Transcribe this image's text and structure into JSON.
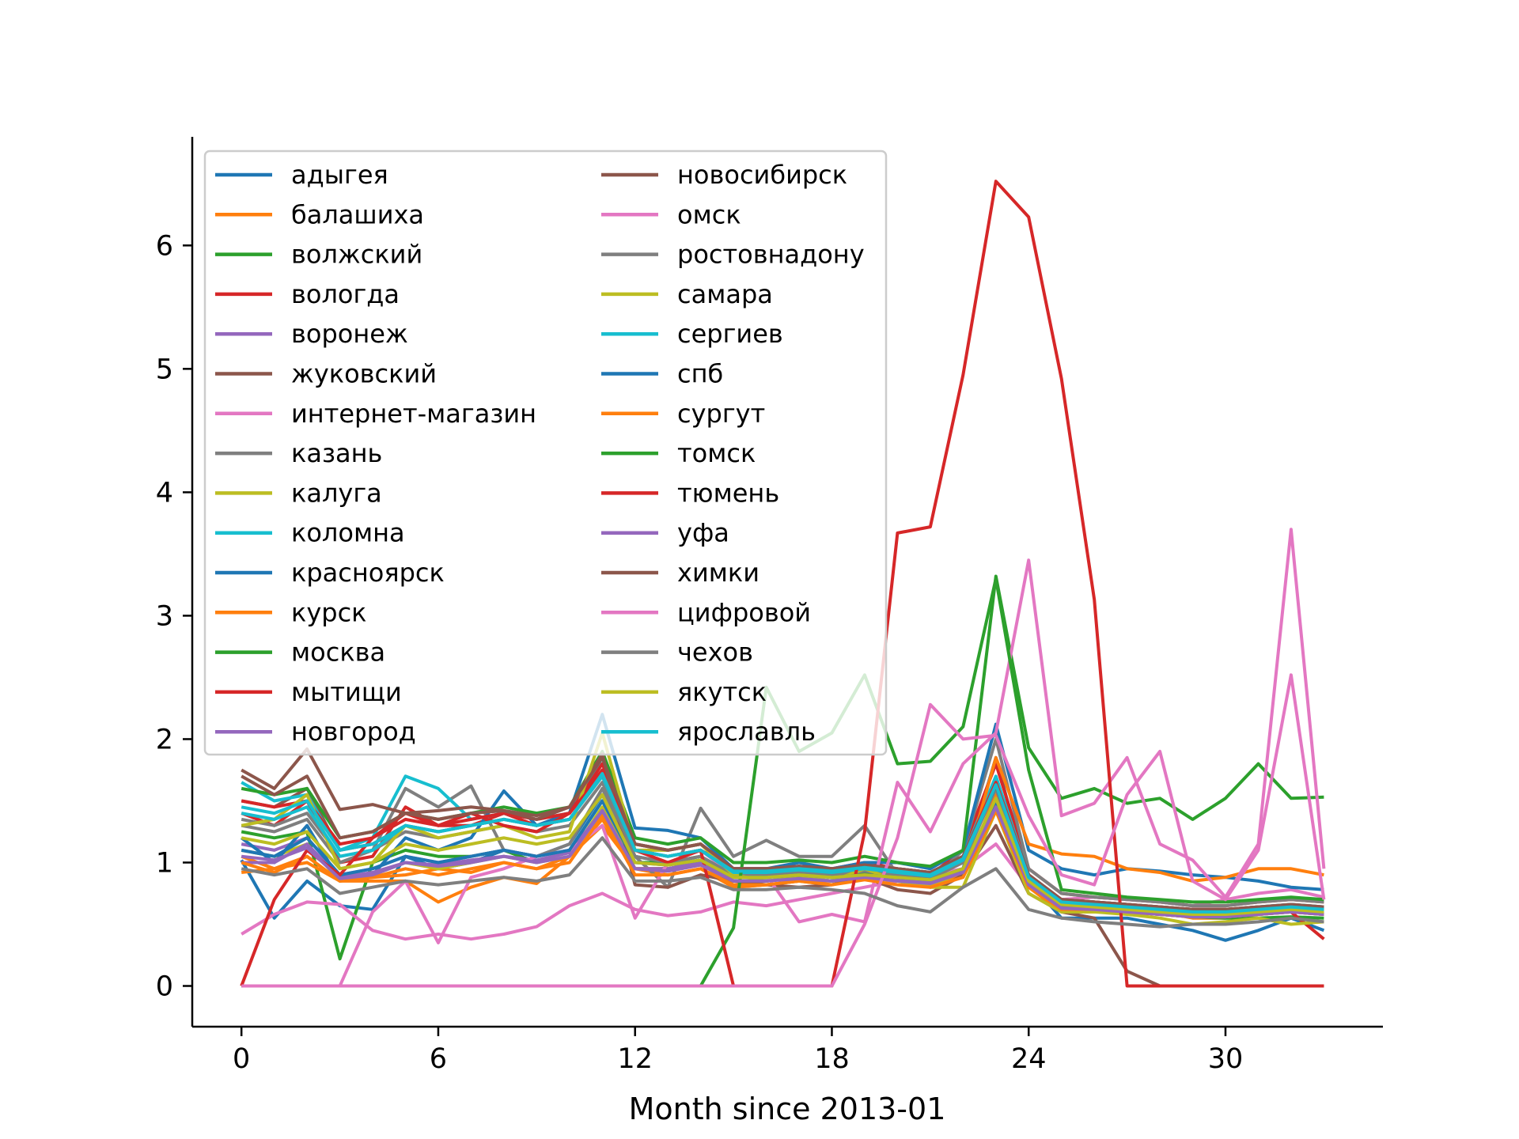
{
  "chart_data": {
    "type": "line",
    "xlabel": "Month since 2013-01",
    "ylabel": "",
    "xlim": [
      -1.5,
      34.8
    ],
    "ylim": [
      -0.33,
      6.88
    ],
    "xticks": [
      0,
      6,
      12,
      18,
      24,
      30
    ],
    "yticks": [
      0,
      1,
      2,
      3,
      4,
      5,
      6
    ],
    "x": [
      0,
      1,
      2,
      3,
      4,
      5,
      6,
      7,
      8,
      9,
      10,
      11,
      12,
      13,
      14,
      15,
      16,
      17,
      18,
      19,
      20,
      21,
      22,
      23,
      24,
      25,
      26,
      27,
      28,
      29,
      30,
      31,
      32,
      33
    ],
    "legend": "upper-left, 2 columns",
    "series": [
      {
        "name": "адыгея",
        "color": "#1f77b4",
        "values": [
          1.02,
          0.55,
          0.85,
          0.65,
          0.62,
          1.05,
          0.95,
          1.0,
          1.1,
          1.05,
          1.15,
          1.55,
          1.05,
          1.0,
          1.05,
          0.9,
          0.88,
          0.92,
          0.88,
          0.9,
          0.85,
          0.82,
          0.95,
          1.85,
          0.85,
          0.55,
          0.55,
          0.55,
          0.5,
          0.45,
          0.37,
          0.45,
          0.55,
          0.45
        ]
      },
      {
        "name": "балашиха",
        "color": "#ff7f0e",
        "values": [
          0.92,
          0.95,
          1.05,
          0.85,
          0.88,
          0.9,
          0.95,
          0.92,
          1.0,
          0.95,
          1.05,
          1.35,
          0.95,
          0.9,
          0.95,
          0.8,
          0.82,
          0.85,
          0.82,
          0.88,
          0.85,
          0.8,
          0.9,
          1.55,
          0.8,
          0.6,
          0.6,
          0.62,
          0.6,
          0.55,
          0.55,
          0.58,
          0.6,
          0.58
        ]
      },
      {
        "name": "волжский",
        "color": "#2ca02c",
        "values": [
          1.25,
          1.2,
          1.25,
          0.22,
          1.0,
          1.1,
          1.05,
          1.05,
          1.1,
          1.0,
          1.1,
          1.5,
          1.0,
          1.0,
          1.05,
          0.9,
          0.9,
          0.92,
          0.9,
          0.92,
          0.9,
          0.88,
          0.95,
          1.5,
          0.85,
          0.65,
          0.62,
          0.6,
          0.58,
          0.56,
          0.55,
          0.55,
          0.56,
          0.55
        ]
      },
      {
        "name": "вологда",
        "color": "#d62728",
        "values": [
          1.4,
          1.3,
          1.5,
          1.0,
          1.05,
          1.45,
          1.3,
          1.3,
          1.4,
          1.3,
          1.4,
          1.75,
          1.1,
          1.05,
          1.1,
          0.95,
          0.9,
          0.92,
          0.95,
          1.0,
          0.95,
          0.9,
          1.1,
          1.8,
          0.95,
          0.75,
          0.72,
          0.7,
          0.68,
          0.65,
          0.65,
          0.68,
          0.7,
          0.68
        ]
      },
      {
        "name": "воронеж",
        "color": "#9467bd",
        "values": [
          1.15,
          1.1,
          1.2,
          0.9,
          0.95,
          1.05,
          1.0,
          1.05,
          1.1,
          1.05,
          1.1,
          1.4,
          0.95,
          0.95,
          1.0,
          0.85,
          0.85,
          0.88,
          0.85,
          0.88,
          0.88,
          0.85,
          0.95,
          1.5,
          0.85,
          0.65,
          0.65,
          0.65,
          0.62,
          0.6,
          0.6,
          0.62,
          0.65,
          0.62
        ]
      },
      {
        "name": "жуковский",
        "color": "#8c564b",
        "values": [
          1.5,
          1.45,
          1.6,
          1.1,
          1.15,
          1.3,
          1.25,
          1.3,
          1.35,
          1.3,
          1.35,
          1.7,
          1.1,
          1.05,
          1.1,
          0.95,
          0.95,
          0.97,
          0.95,
          0.98,
          0.95,
          0.92,
          1.05,
          1.6,
          0.9,
          0.7,
          0.68,
          0.66,
          0.64,
          0.62,
          0.62,
          0.64,
          0.66,
          0.64
        ]
      },
      {
        "name": "интернет-магазин",
        "color": "#e377c2",
        "values": [
          0.42,
          0.58,
          0.68,
          0.66,
          0.45,
          0.38,
          0.42,
          0.38,
          0.42,
          0.48,
          0.65,
          0.75,
          0.62,
          0.57,
          0.6,
          0.68,
          0.65,
          0.7,
          0.75,
          0.8,
          0.85,
          0.9,
          0.95,
          1.15,
          0.8,
          0.7,
          0.72,
          0.7,
          0.68,
          0.65,
          0.7,
          0.75,
          0.78,
          0.72
        ]
      },
      {
        "name": "казань",
        "color": "#7f7f7f",
        "values": [
          1.3,
          1.25,
          1.35,
          1.0,
          1.1,
          1.6,
          1.45,
          1.62,
          1.1,
          1.05,
          1.15,
          1.6,
          1.05,
          0.8,
          1.44,
          1.05,
          1.18,
          1.05,
          1.05,
          1.3,
          0.9,
          0.85,
          1.1,
          2.0,
          0.95,
          0.75,
          0.72,
          0.7,
          0.68,
          0.65,
          0.65,
          0.68,
          0.7,
          0.68
        ]
      },
      {
        "name": "калуга",
        "color": "#bcbd22",
        "values": [
          1.1,
          1.05,
          1.15,
          0.85,
          0.9,
          1.0,
          0.95,
          1.0,
          1.05,
          1.0,
          1.05,
          1.45,
          0.95,
          0.95,
          1.0,
          0.85,
          0.85,
          0.88,
          0.85,
          0.88,
          0.85,
          0.82,
          0.9,
          1.45,
          0.8,
          0.62,
          0.62,
          0.6,
          0.58,
          0.56,
          0.56,
          0.58,
          0.6,
          0.58
        ]
      },
      {
        "name": "коломна",
        "color": "#17becf",
        "values": [
          1.65,
          1.5,
          1.55,
          1.1,
          1.2,
          1.7,
          1.6,
          1.35,
          1.4,
          1.35,
          1.4,
          1.85,
          1.15,
          1.1,
          1.15,
          0.95,
          0.95,
          0.97,
          0.95,
          0.98,
          0.95,
          0.92,
          1.05,
          1.7,
          0.9,
          0.7,
          0.68,
          0.66,
          0.64,
          0.62,
          0.62,
          0.64,
          0.66,
          0.64
        ]
      },
      {
        "name": "красноярск",
        "color": "#1f77b4",
        "values": [
          1.2,
          1.0,
          1.3,
          0.85,
          0.9,
          1.2,
          1.1,
          1.2,
          1.58,
          1.3,
          1.4,
          2.2,
          1.28,
          1.26,
          1.2,
          0.95,
          0.95,
          1.0,
          0.95,
          1.0,
          1.0,
          0.95,
          1.1,
          2.12,
          1.1,
          0.95,
          0.9,
          0.95,
          0.93,
          0.9,
          0.88,
          0.85,
          0.8,
          0.78
        ]
      },
      {
        "name": "курск",
        "color": "#ff7f0e",
        "values": [
          1.05,
          0.95,
          1.0,
          0.85,
          0.85,
          0.85,
          0.68,
          0.8,
          0.88,
          0.83,
          1.05,
          1.3,
          0.95,
          0.95,
          1.0,
          0.8,
          0.82,
          0.85,
          0.85,
          0.9,
          0.85,
          0.85,
          0.9,
          1.85,
          1.15,
          1.07,
          1.05,
          0.95,
          0.92,
          0.85,
          0.88,
          0.95,
          0.95,
          0.9
        ]
      },
      {
        "name": "москва",
        "color": "#2ca02c",
        "values": [
          1.6,
          1.55,
          1.6,
          1.2,
          1.25,
          1.4,
          1.35,
          1.4,
          1.45,
          1.4,
          1.45,
          1.9,
          1.2,
          1.15,
          1.2,
          1.0,
          1.0,
          1.02,
          1.0,
          1.05,
          1.0,
          0.97,
          1.1,
          3.32,
          1.93,
          1.52,
          1.6,
          1.48,
          1.52,
          1.35,
          1.52,
          1.8,
          1.52,
          1.53
        ]
      },
      {
        "name": "мытищи",
        "color": "#d62728",
        "values": [
          1.5,
          1.45,
          1.5,
          1.15,
          1.2,
          1.35,
          1.3,
          1.35,
          1.4,
          1.35,
          1.4,
          1.8,
          1.15,
          1.1,
          1.15,
          0.95,
          0.95,
          0.97,
          0.95,
          0.98,
          0.95,
          0.92,
          1.05,
          1.65,
          0.9,
          0.7,
          0.68,
          0.66,
          0.64,
          0.62,
          0.62,
          0.64,
          0.6,
          0.38
        ]
      },
      {
        "name": "новгород",
        "color": "#9467bd",
        "values": [
          1.0,
          1.0,
          1.15,
          0.88,
          0.92,
          1.0,
          0.98,
          1.02,
          1.05,
          1.02,
          1.08,
          1.42,
          0.95,
          0.95,
          1.0,
          0.85,
          0.85,
          0.88,
          0.85,
          0.88,
          0.86,
          0.84,
          0.92,
          1.45,
          0.82,
          0.62,
          0.62,
          0.6,
          0.58,
          0.56,
          0.56,
          0.58,
          0.6,
          0.58
        ]
      },
      {
        "name": "новосибирск",
        "color": "#8c564b",
        "values": [
          1.75,
          1.6,
          1.92,
          1.43,
          1.47,
          1.4,
          1.42,
          1.45,
          1.42,
          1.35,
          1.45,
          1.88,
          0.82,
          0.8,
          0.9,
          0.85,
          0.82,
          0.8,
          0.82,
          0.88,
          0.78,
          0.75,
          0.9,
          1.3,
          0.75,
          0.6,
          0.55,
          0.12,
          0.0,
          0.0,
          0.0,
          0.0,
          0.0,
          0.0
        ]
      },
      {
        "name": "омск",
        "color": "#e377c2",
        "values": [
          0.0,
          0.0,
          0.0,
          0.0,
          0.6,
          0.85,
          0.35,
          0.88,
          0.95,
          1.05,
          1.1,
          1.3,
          0.55,
          1.0,
          1.1,
          0.9,
          0.9,
          0.52,
          0.58,
          0.52,
          1.65,
          1.25,
          1.8,
          2.05,
          3.45,
          1.38,
          1.48,
          1.85,
          1.15,
          1.02,
          0.72,
          1.15,
          3.7,
          0.95
        ]
      },
      {
        "name": "ростовнадону",
        "color": "#7f7f7f",
        "values": [
          1.35,
          1.3,
          1.4,
          1.05,
          1.1,
          1.25,
          1.2,
          1.25,
          1.3,
          1.25,
          1.3,
          1.65,
          1.05,
          1.0,
          1.05,
          0.9,
          0.9,
          0.92,
          0.9,
          0.93,
          0.9,
          0.87,
          1.0,
          1.6,
          0.85,
          0.65,
          0.63,
          0.61,
          0.59,
          0.57,
          0.57,
          0.59,
          0.61,
          0.59
        ]
      },
      {
        "name": "самара",
        "color": "#bcbd22",
        "values": [
          1.3,
          1.35,
          1.55,
          0.95,
          1.0,
          1.3,
          1.2,
          1.25,
          1.3,
          1.2,
          1.25,
          2.05,
          1.1,
          1.1,
          1.15,
          0.9,
          0.85,
          0.88,
          0.85,
          0.95,
          0.85,
          0.8,
          0.8,
          1.42,
          0.75,
          0.6,
          0.6,
          0.58,
          0.55,
          0.5,
          0.52,
          0.55,
          0.5,
          0.52
        ]
      },
      {
        "name": "сергиев",
        "color": "#17becf",
        "values": [
          1.4,
          1.35,
          1.45,
          1.05,
          1.1,
          1.3,
          1.25,
          1.3,
          1.35,
          1.3,
          1.35,
          1.7,
          1.1,
          1.05,
          1.1,
          0.92,
          0.92,
          0.94,
          0.92,
          0.95,
          0.92,
          0.89,
          1.02,
          1.62,
          0.88,
          0.68,
          0.66,
          0.64,
          0.62,
          0.6,
          0.6,
          0.62,
          0.64,
          0.62
        ]
      },
      {
        "name": "спб",
        "color": "#1f77b4",
        "values": [
          1.1,
          1.05,
          1.2,
          0.9,
          0.95,
          1.05,
          1.0,
          1.05,
          1.1,
          1.05,
          1.1,
          1.5,
          1.0,
          0.98,
          1.02,
          0.88,
          0.88,
          0.9,
          0.88,
          0.9,
          0.88,
          0.86,
          0.95,
          1.5,
          0.85,
          0.68,
          0.66,
          0.64,
          0.62,
          0.6,
          0.6,
          0.62,
          0.64,
          0.62
        ]
      },
      {
        "name": "сургут",
        "color": "#ff7f0e",
        "values": [
          1.0,
          0.92,
          1.05,
          0.85,
          0.88,
          0.95,
          0.9,
          0.95,
          1.0,
          0.95,
          1.0,
          1.38,
          0.9,
          0.9,
          0.95,
          0.82,
          0.82,
          0.85,
          0.82,
          0.86,
          0.82,
          0.8,
          0.88,
          1.42,
          0.8,
          0.62,
          0.62,
          0.6,
          0.58,
          0.56,
          0.56,
          0.58,
          0.6,
          0.58
        ]
      },
      {
        "name": "томск",
        "color": "#2ca02c",
        "values": [
          0.0,
          0.0,
          0.0,
          0.0,
          0.0,
          0.0,
          0.0,
          0.0,
          0.0,
          0.0,
          0.0,
          0.0,
          0.0,
          0.0,
          0.0,
          0.47,
          2.42,
          1.9,
          2.05,
          2.52,
          1.8,
          1.82,
          2.1,
          3.3,
          1.75,
          0.78,
          0.75,
          0.72,
          0.7,
          0.68,
          0.68,
          0.7,
          0.72,
          0.7
        ]
      },
      {
        "name": "тюмень",
        "color": "#d62728",
        "values": [
          0.0,
          0.7,
          1.1,
          0.9,
          1.2,
          1.4,
          1.3,
          1.4,
          1.3,
          1.25,
          1.4,
          1.72,
          1.1,
          1.0,
          1.1,
          0.0,
          0.0,
          0.0,
          0.0,
          1.25,
          3.67,
          3.72,
          4.95,
          6.52,
          6.23,
          4.92,
          3.13,
          0.0,
          0.0,
          0.0,
          0.0,
          0.0,
          0.0,
          0.0
        ]
      },
      {
        "name": "уфа",
        "color": "#9467bd",
        "values": [
          1.05,
          1.02,
          1.12,
          0.87,
          0.9,
          1.0,
          0.97,
          1.0,
          1.05,
          1.0,
          1.05,
          1.42,
          0.95,
          0.93,
          0.98,
          0.85,
          0.85,
          0.87,
          0.85,
          0.88,
          0.85,
          0.83,
          0.92,
          1.45,
          0.82,
          0.63,
          0.62,
          0.6,
          0.58,
          0.56,
          0.56,
          0.58,
          0.6,
          0.58
        ]
      },
      {
        "name": "химки",
        "color": "#8c564b",
        "values": [
          1.7,
          1.55,
          1.7,
          1.2,
          1.25,
          1.4,
          1.35,
          1.4,
          1.42,
          1.38,
          1.45,
          1.85,
          1.15,
          1.1,
          1.15,
          0.95,
          0.95,
          0.97,
          0.95,
          0.98,
          0.95,
          0.92,
          1.05,
          1.62,
          0.9,
          0.7,
          0.68,
          0.66,
          0.64,
          0.62,
          0.62,
          0.64,
          0.66,
          0.64
        ]
      },
      {
        "name": "цифровой",
        "color": "#e377c2",
        "values": [
          0.0,
          0.0,
          0.0,
          0.0,
          0.0,
          0.0,
          0.0,
          0.0,
          0.0,
          0.0,
          0.0,
          0.0,
          0.0,
          0.0,
          0.0,
          0.0,
          0.0,
          0.0,
          0.0,
          0.5,
          1.2,
          2.28,
          2.0,
          2.03,
          1.38,
          0.9,
          0.82,
          1.55,
          1.9,
          0.85,
          0.7,
          1.1,
          2.52,
          0.7
        ]
      },
      {
        "name": "чехов",
        "color": "#7f7f7f",
        "values": [
          0.95,
          0.9,
          0.95,
          0.75,
          0.8,
          0.85,
          0.82,
          0.85,
          0.88,
          0.85,
          0.9,
          1.2,
          0.85,
          0.85,
          0.88,
          0.78,
          0.78,
          0.8,
          0.78,
          0.75,
          0.65,
          0.6,
          0.8,
          0.95,
          0.62,
          0.55,
          0.52,
          0.5,
          0.48,
          0.5,
          0.5,
          0.52,
          0.55,
          0.52
        ]
      },
      {
        "name": "якутск",
        "color": "#bcbd22",
        "values": [
          1.2,
          1.15,
          1.25,
          0.95,
          1.0,
          1.15,
          1.1,
          1.15,
          1.2,
          1.15,
          1.2,
          1.55,
          1.0,
          0.98,
          1.02,
          0.88,
          0.88,
          0.9,
          0.88,
          0.9,
          0.88,
          0.86,
          0.95,
          1.52,
          0.85,
          0.66,
          0.64,
          0.62,
          0.6,
          0.58,
          0.58,
          0.6,
          0.62,
          0.6
        ]
      },
      {
        "name": "ярославль",
        "color": "#17becf",
        "values": [
          1.45,
          1.4,
          1.5,
          1.1,
          1.15,
          1.3,
          1.25,
          1.3,
          1.35,
          1.3,
          1.35,
          1.72,
          1.1,
          1.05,
          1.1,
          0.93,
          0.93,
          0.95,
          0.93,
          0.96,
          0.93,
          0.9,
          1.03,
          1.63,
          0.88,
          0.68,
          0.66,
          0.64,
          0.62,
          0.6,
          0.6,
          0.62,
          0.64,
          0.62
        ]
      }
    ]
  }
}
